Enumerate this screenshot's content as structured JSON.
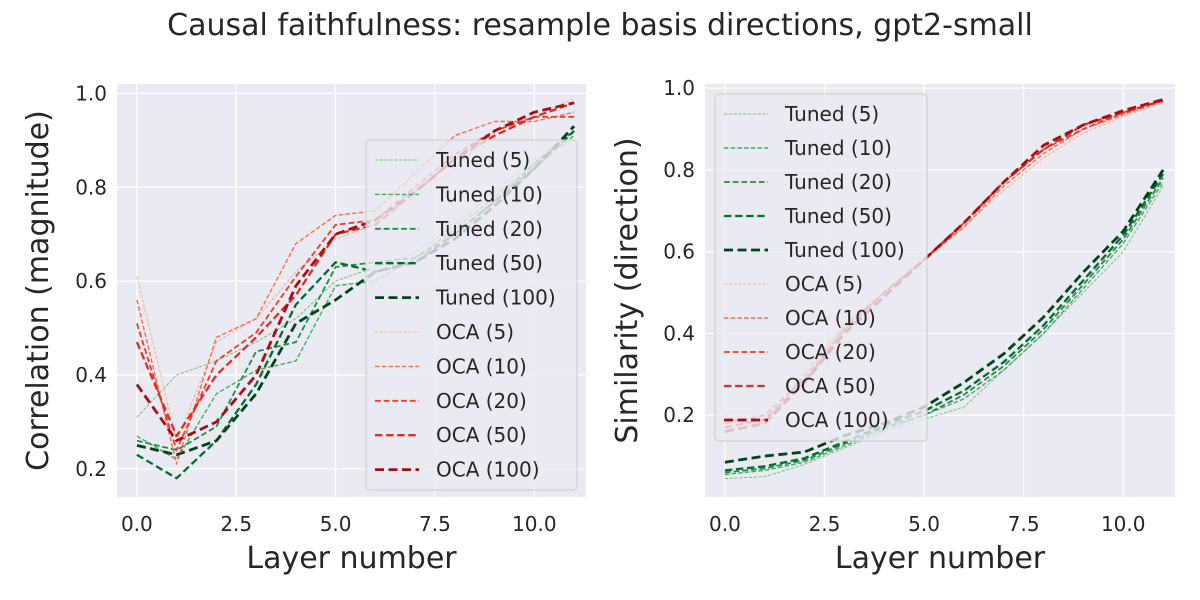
{
  "figure": {
    "title": "Causal faithfulness: resample basis directions, gpt2-small"
  },
  "chart_data": [
    {
      "type": "line",
      "xlabel": "Layer number",
      "ylabel": "Correlation (magnitude)",
      "xlim": [
        -0.5,
        11.3
      ],
      "ylim": [
        0.14,
        1.02
      ],
      "xticks": [
        0.0,
        2.5,
        5.0,
        7.5,
        10.0
      ],
      "xtick_labels": [
        "0.0",
        "2.5",
        "5.0",
        "7.5",
        "10.0"
      ],
      "yticks": [
        0.2,
        0.4,
        0.6,
        0.8,
        1.0
      ],
      "ytick_labels": [
        "0.2",
        "0.4",
        "0.6",
        "0.8",
        "1.0"
      ],
      "grid": true,
      "legend_position": "right",
      "x": [
        0,
        1,
        2,
        3,
        4,
        5,
        6,
        7,
        8,
        9,
        10,
        11
      ],
      "series": [
        {
          "name": "Tuned (5)",
          "color": "#74c476",
          "width": 1,
          "values": [
            0.31,
            0.4,
            0.43,
            0.47,
            0.52,
            0.6,
            0.63,
            0.66,
            0.72,
            0.79,
            0.86,
            0.9
          ]
        },
        {
          "name": "Tuned (10)",
          "color": "#41ab5d",
          "width": 1.4,
          "values": [
            0.27,
            0.22,
            0.36,
            0.41,
            0.43,
            0.59,
            0.6,
            0.65,
            0.71,
            0.78,
            0.85,
            0.91
          ]
        },
        {
          "name": "Tuned (20)",
          "color": "#238b45",
          "width": 1.8,
          "values": [
            0.26,
            0.24,
            0.29,
            0.45,
            0.47,
            0.63,
            0.64,
            0.65,
            0.7,
            0.77,
            0.85,
            0.92
          ]
        },
        {
          "name": "Tuned (50)",
          "color": "#006d2c",
          "width": 2.3,
          "values": [
            0.23,
            0.18,
            0.26,
            0.38,
            0.55,
            0.64,
            0.62,
            0.64,
            0.7,
            0.77,
            0.84,
            0.92
          ]
        },
        {
          "name": "Tuned (100)",
          "color": "#00441b",
          "width": 2.8,
          "values": [
            0.25,
            0.23,
            0.26,
            0.36,
            0.51,
            0.56,
            0.62,
            0.64,
            0.69,
            0.76,
            0.84,
            0.93
          ]
        },
        {
          "name": "OCA (5)",
          "color": "#fcae91",
          "width": 1,
          "values": [
            0.61,
            0.26,
            0.47,
            0.52,
            0.62,
            0.69,
            0.72,
            0.78,
            0.84,
            0.92,
            0.95,
            0.99
          ]
        },
        {
          "name": "OCA (10)",
          "color": "#fb6a4a",
          "width": 1.4,
          "values": [
            0.56,
            0.21,
            0.48,
            0.52,
            0.68,
            0.74,
            0.75,
            0.83,
            0.91,
            0.94,
            0.94,
            0.96
          ]
        },
        {
          "name": "OCA (20)",
          "color": "#ef3b2c",
          "width": 1.8,
          "values": [
            0.51,
            0.24,
            0.43,
            0.49,
            0.61,
            0.72,
            0.73,
            0.8,
            0.87,
            0.92,
            0.95,
            0.95
          ]
        },
        {
          "name": "OCA (50)",
          "color": "#de2d26",
          "width": 2.3,
          "values": [
            0.47,
            0.27,
            0.4,
            0.48,
            0.57,
            0.7,
            0.72,
            0.79,
            0.86,
            0.91,
            0.95,
            0.98
          ]
        },
        {
          "name": "OCA (100)",
          "color": "#a50f15",
          "width": 2.8,
          "values": [
            0.38,
            0.26,
            0.3,
            0.4,
            0.59,
            0.7,
            0.73,
            0.79,
            0.86,
            0.92,
            0.96,
            0.98
          ]
        }
      ]
    },
    {
      "type": "line",
      "xlabel": "Layer number",
      "ylabel": "Similarity (direction)",
      "xlim": [
        -0.5,
        11.3
      ],
      "ylim": [
        0.0,
        1.01
      ],
      "xticks": [
        0.0,
        2.5,
        5.0,
        7.5,
        10.0
      ],
      "xtick_labels": [
        "0.0",
        "2.5",
        "5.0",
        "7.5",
        "10.0"
      ],
      "yticks": [
        0.2,
        0.4,
        0.6,
        0.8,
        1.0
      ],
      "ytick_labels": [
        "0.2",
        "0.4",
        "0.6",
        "0.8",
        "1.0"
      ],
      "grid": true,
      "legend_position": "upper left",
      "x": [
        0,
        1,
        2,
        3,
        4,
        5,
        6,
        7,
        8,
        9,
        10,
        11
      ],
      "series": [
        {
          "name": "Tuned (5)",
          "color": "#74c476",
          "width": 1,
          "values": [
            0.045,
            0.05,
            0.08,
            0.12,
            0.16,
            0.19,
            0.22,
            0.31,
            0.4,
            0.5,
            0.6,
            0.76
          ]
        },
        {
          "name": "Tuned (10)",
          "color": "#41ab5d",
          "width": 1.4,
          "values": [
            0.055,
            0.065,
            0.085,
            0.125,
            0.165,
            0.2,
            0.24,
            0.31,
            0.4,
            0.51,
            0.62,
            0.77
          ]
        },
        {
          "name": "Tuned (20)",
          "color": "#238b45",
          "width": 1.8,
          "values": [
            0.06,
            0.07,
            0.09,
            0.13,
            0.17,
            0.2,
            0.25,
            0.32,
            0.41,
            0.52,
            0.63,
            0.78
          ]
        },
        {
          "name": "Tuned (50)",
          "color": "#006d2c",
          "width": 2.3,
          "values": [
            0.065,
            0.075,
            0.095,
            0.135,
            0.175,
            0.21,
            0.26,
            0.33,
            0.42,
            0.53,
            0.64,
            0.79
          ]
        },
        {
          "name": "Tuned (100)",
          "color": "#00441b",
          "width": 2.8,
          "values": [
            0.085,
            0.1,
            0.11,
            0.15,
            0.18,
            0.22,
            0.28,
            0.35,
            0.44,
            0.55,
            0.65,
            0.8
          ]
        },
        {
          "name": "OCA (5)",
          "color": "#fcae91",
          "width": 1,
          "values": [
            0.2,
            0.16,
            0.31,
            0.42,
            0.5,
            0.58,
            0.66,
            0.75,
            0.83,
            0.89,
            0.93,
            0.965
          ]
        },
        {
          "name": "OCA (10)",
          "color": "#fb6a4a",
          "width": 1.4,
          "values": [
            0.19,
            0.18,
            0.3,
            0.42,
            0.5,
            0.58,
            0.66,
            0.76,
            0.84,
            0.9,
            0.935,
            0.968
          ]
        },
        {
          "name": "OCA (20)",
          "color": "#ef3b2c",
          "width": 1.8,
          "values": [
            0.18,
            0.2,
            0.29,
            0.41,
            0.5,
            0.58,
            0.67,
            0.77,
            0.85,
            0.9,
            0.94,
            0.97
          ]
        },
        {
          "name": "OCA (50)",
          "color": "#de2d26",
          "width": 2.3,
          "values": [
            0.17,
            0.19,
            0.28,
            0.41,
            0.5,
            0.58,
            0.67,
            0.77,
            0.85,
            0.91,
            0.94,
            0.97
          ]
        },
        {
          "name": "OCA (100)",
          "color": "#a50f15",
          "width": 2.8,
          "values": [
            0.16,
            0.18,
            0.28,
            0.4,
            0.49,
            0.58,
            0.67,
            0.77,
            0.86,
            0.91,
            0.945,
            0.972
          ]
        }
      ]
    }
  ]
}
